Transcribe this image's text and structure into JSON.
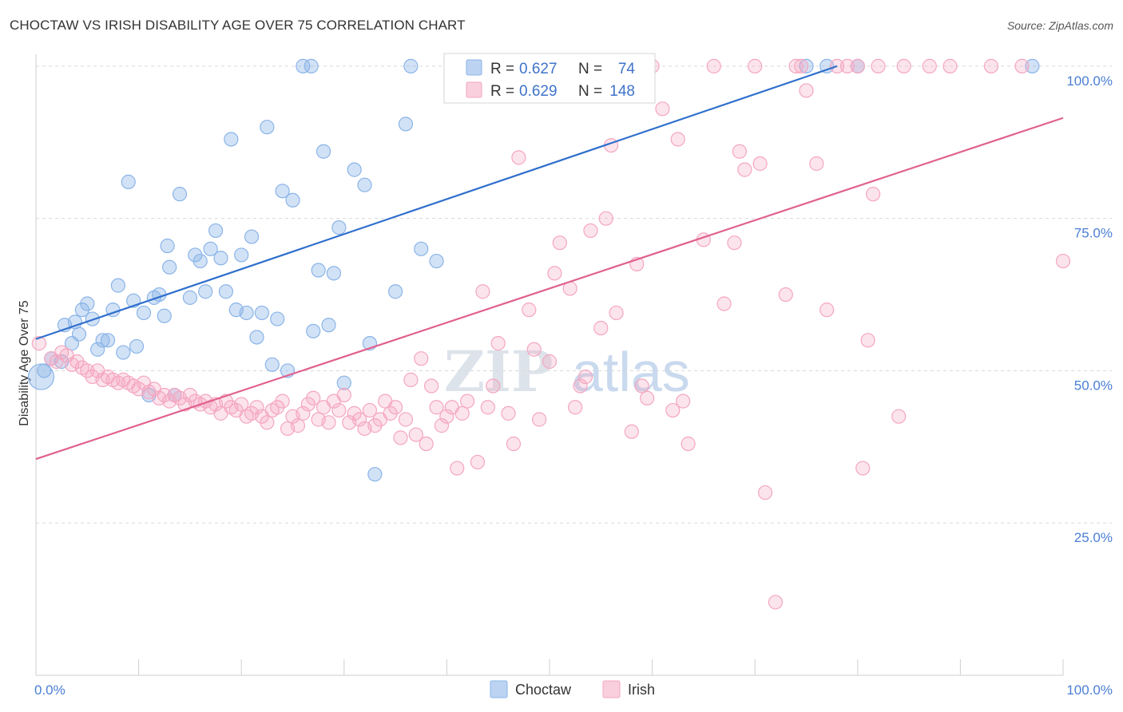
{
  "title": "CHOCTAW VS IRISH DISABILITY AGE OVER 75 CORRELATION CHART",
  "source": "Source: ZipAtlas.com",
  "watermark": {
    "part1": "ZIP",
    "part2": "atlas"
  },
  "chart_data": {
    "type": "scatter",
    "title": "CHOCTAW VS IRISH DISABILITY AGE OVER 75 CORRELATION CHART",
    "xlabel": "",
    "ylabel": "Disability Age Over 75",
    "xlim": [
      0,
      100
    ],
    "ylim": [
      0,
      103
    ],
    "x_tick_labels": [
      {
        "value": 0,
        "label": "0.0%"
      },
      {
        "value": 100,
        "label": "100.0%"
      }
    ],
    "y_tick_labels": [
      {
        "value": 25,
        "label": "25.0%"
      },
      {
        "value": 50,
        "label": "50.0%"
      },
      {
        "value": 75,
        "label": "75.0%"
      },
      {
        "value": 100,
        "label": "100.0%"
      }
    ],
    "grid": "horizontal dashed",
    "legend_placement": "top-center",
    "legend": [
      {
        "r_label": "R =",
        "r_value": "0.627",
        "n_label": "N =",
        "n_value": "74"
      },
      {
        "r_label": "R =",
        "r_value": "0.629",
        "n_label": "N =",
        "n_value": "148"
      }
    ],
    "series": [
      {
        "name": "Choctaw",
        "color": "#8ab4e8",
        "line_color": "#2f6fcc",
        "trend": {
          "x0": 0,
          "y0": 55.2,
          "x1": 78,
          "y1": 100
        },
        "points": [
          [
            0.5,
            49
          ],
          [
            0.8,
            50
          ],
          [
            1.5,
            52
          ],
          [
            2.5,
            51.5
          ],
          [
            2.8,
            57.5
          ],
          [
            3.5,
            54.5
          ],
          [
            3.8,
            58
          ],
          [
            4.2,
            56
          ],
          [
            4.5,
            60
          ],
          [
            5,
            61
          ],
          [
            5.5,
            58.5
          ],
          [
            6,
            53.5
          ],
          [
            6.5,
            55
          ],
          [
            7,
            55
          ],
          [
            7.5,
            60
          ],
          [
            8,
            64
          ],
          [
            8.5,
            53
          ],
          [
            9,
            81
          ],
          [
            9.5,
            61.5
          ],
          [
            9.8,
            54
          ],
          [
            10.5,
            59.5
          ],
          [
            11,
            46
          ],
          [
            11.5,
            62
          ],
          [
            12,
            62.5
          ],
          [
            12.5,
            59
          ],
          [
            12.8,
            70.5
          ],
          [
            13,
            67
          ],
          [
            13.5,
            46
          ],
          [
            14,
            79
          ],
          [
            15,
            62
          ],
          [
            15.5,
            69
          ],
          [
            16,
            68
          ],
          [
            16.5,
            63
          ],
          [
            17,
            70
          ],
          [
            17.5,
            73
          ],
          [
            18,
            68.5
          ],
          [
            18.5,
            63
          ],
          [
            19,
            88
          ],
          [
            19.5,
            60
          ],
          [
            20,
            69
          ],
          [
            20.5,
            59.5
          ],
          [
            21,
            72
          ],
          [
            21.5,
            55.5
          ],
          [
            22,
            59.5
          ],
          [
            22.5,
            90
          ],
          [
            23,
            51
          ],
          [
            23.5,
            58.5
          ],
          [
            24,
            79.5
          ],
          [
            24.5,
            50
          ],
          [
            25,
            78
          ],
          [
            26,
            100
          ],
          [
            26.8,
            100
          ],
          [
            27,
            56.5
          ],
          [
            27.5,
            66.5
          ],
          [
            28,
            86
          ],
          [
            28.5,
            57.5
          ],
          [
            29,
            66
          ],
          [
            29.5,
            73.5
          ],
          [
            30,
            48
          ],
          [
            31,
            83
          ],
          [
            32,
            80.5
          ],
          [
            32.5,
            54.5
          ],
          [
            33,
            33
          ],
          [
            35,
            63
          ],
          [
            36,
            90.5
          ],
          [
            36.5,
            100
          ],
          [
            37.5,
            70
          ],
          [
            39,
            68
          ],
          [
            43,
            100
          ],
          [
            75,
            100
          ],
          [
            77,
            100
          ],
          [
            80,
            100
          ],
          [
            97,
            100
          ]
        ]
      },
      {
        "name": "Irish",
        "color": "#f4a6c0",
        "line_color": "#e0608f",
        "trend": {
          "x0": 0,
          "y0": 35.5,
          "x1": 100,
          "y1": 91.5
        },
        "points": [
          [
            0.3,
            54.5
          ],
          [
            1.5,
            52
          ],
          [
            2,
            51.5
          ],
          [
            2.5,
            53
          ],
          [
            3,
            52.5
          ],
          [
            3.5,
            51
          ],
          [
            4,
            51.5
          ],
          [
            4.5,
            50.5
          ],
          [
            5,
            50
          ],
          [
            5.5,
            49
          ],
          [
            6,
            50
          ],
          [
            6.5,
            48.5
          ],
          [
            7,
            49
          ],
          [
            7.5,
            48.5
          ],
          [
            8,
            48
          ],
          [
            8.5,
            48.5
          ],
          [
            9,
            48
          ],
          [
            9.5,
            47.5
          ],
          [
            10,
            47
          ],
          [
            10.5,
            48
          ],
          [
            11,
            46.5
          ],
          [
            11.5,
            47
          ],
          [
            12,
            45.5
          ],
          [
            12.5,
            46
          ],
          [
            13,
            45
          ],
          [
            13.5,
            46
          ],
          [
            14,
            45.5
          ],
          [
            14.5,
            44.5
          ],
          [
            15,
            46
          ],
          [
            15.5,
            45
          ],
          [
            16,
            44.5
          ],
          [
            16.5,
            45
          ],
          [
            17,
            44
          ],
          [
            17.5,
            44.5
          ],
          [
            18,
            43
          ],
          [
            18.5,
            45
          ],
          [
            19,
            44
          ],
          [
            19.5,
            43.5
          ],
          [
            20,
            44.5
          ],
          [
            20.5,
            42.5
          ],
          [
            21,
            43
          ],
          [
            21.5,
            44
          ],
          [
            22,
            42.5
          ],
          [
            22.5,
            41.5
          ],
          [
            23,
            43.5
          ],
          [
            23.5,
            44
          ],
          [
            24,
            45
          ],
          [
            24.5,
            40.5
          ],
          [
            25,
            42.5
          ],
          [
            25.5,
            41
          ],
          [
            26,
            43
          ],
          [
            26.5,
            44.5
          ],
          [
            27,
            45.5
          ],
          [
            27.5,
            42
          ],
          [
            28,
            44
          ],
          [
            28.5,
            41.5
          ],
          [
            29,
            45
          ],
          [
            29.5,
            43.5
          ],
          [
            30,
            46
          ],
          [
            30.5,
            41.5
          ],
          [
            31,
            43
          ],
          [
            31.5,
            42
          ],
          [
            32,
            40.5
          ],
          [
            32.5,
            43.5
          ],
          [
            33,
            41
          ],
          [
            33.5,
            42
          ],
          [
            34,
            45
          ],
          [
            34.5,
            43
          ],
          [
            35,
            44
          ],
          [
            35.5,
            39
          ],
          [
            36,
            42
          ],
          [
            36.5,
            48.5
          ],
          [
            37,
            39.5
          ],
          [
            37.5,
            52
          ],
          [
            38,
            38
          ],
          [
            38.5,
            47.5
          ],
          [
            39,
            44
          ],
          [
            39.5,
            41
          ],
          [
            40,
            42.5
          ],
          [
            40.5,
            44
          ],
          [
            41,
            34
          ],
          [
            41.5,
            43
          ],
          [
            42,
            45
          ],
          [
            43,
            35
          ],
          [
            43.5,
            63
          ],
          [
            44,
            44
          ],
          [
            44.5,
            47.5
          ],
          [
            45,
            54.5
          ],
          [
            46,
            43
          ],
          [
            46.5,
            38
          ],
          [
            47,
            85
          ],
          [
            48,
            60
          ],
          [
            48.5,
            53.5
          ],
          [
            49,
            42
          ],
          [
            50,
            51.5
          ],
          [
            50.5,
            66
          ],
          [
            51,
            71
          ],
          [
            52,
            63.5
          ],
          [
            52.5,
            44
          ],
          [
            53,
            47.5
          ],
          [
            53.5,
            49
          ],
          [
            54,
            73
          ],
          [
            55,
            57
          ],
          [
            55.5,
            75
          ],
          [
            56,
            87
          ],
          [
            56.5,
            59.5
          ],
          [
            58,
            40
          ],
          [
            58.5,
            67.5
          ],
          [
            59,
            47.5
          ],
          [
            59.5,
            45.5
          ],
          [
            60,
            100
          ],
          [
            61,
            93
          ],
          [
            62,
            43.5
          ],
          [
            62.5,
            88
          ],
          [
            63,
            45
          ],
          [
            63.5,
            38
          ],
          [
            65,
            71.5
          ],
          [
            66,
            100
          ],
          [
            67,
            61
          ],
          [
            68,
            71
          ],
          [
            68.5,
            86
          ],
          [
            69,
            83
          ],
          [
            70,
            100
          ],
          [
            70.5,
            84
          ],
          [
            71,
            30
          ],
          [
            72,
            12
          ],
          [
            73,
            62.5
          ],
          [
            74,
            100
          ],
          [
            74.5,
            100
          ],
          [
            75,
            96
          ],
          [
            76,
            84
          ],
          [
            77,
            60
          ],
          [
            78,
            100
          ],
          [
            79,
            100
          ],
          [
            80,
            100
          ],
          [
            80.5,
            34
          ],
          [
            81,
            55
          ],
          [
            81.5,
            79
          ],
          [
            82,
            100
          ],
          [
            84,
            42.5
          ],
          [
            84.5,
            100
          ],
          [
            87,
            100
          ],
          [
            89,
            100
          ],
          [
            93,
            100
          ],
          [
            96,
            100
          ],
          [
            100,
            68
          ]
        ]
      }
    ]
  },
  "bottom_legend": [
    {
      "label": "Choctaw",
      "color": "#8ab4e8"
    },
    {
      "label": "Irish",
      "color": "#f4a6c0"
    }
  ]
}
